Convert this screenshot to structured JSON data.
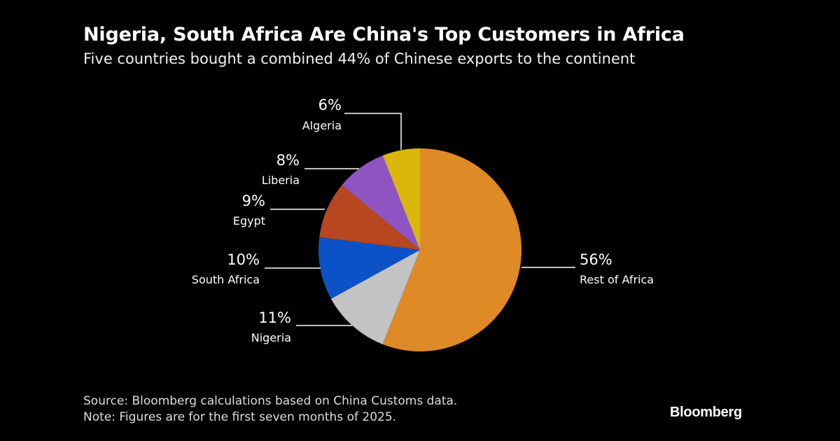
{
  "header": {
    "title": "Nigeria, South Africa Are China's Top Customers in Africa",
    "subtitle": "Five countries bought a combined 44% of Chinese exports to the continent"
  },
  "footer": {
    "source": "Source: Bloomberg calculations based on China Customs data.",
    "note": "Note: Figures are for the first seven months of 2025.",
    "brand": "Bloomberg"
  },
  "chart_data": {
    "type": "pie",
    "title": "Nigeria, South Africa Are China's Top Customers in Africa",
    "subtitle": "Five countries bought a combined 44% of Chinese exports to the continent",
    "unit": "%",
    "slices": [
      {
        "label": "Rest of Africa",
        "value": 56,
        "display": "56%",
        "color": "#DE8A26"
      },
      {
        "label": "Nigeria",
        "value": 11,
        "display": "11%",
        "color": "#C3C3C3"
      },
      {
        "label": "South Africa",
        "value": 10,
        "display": "10%",
        "color": "#0A52C6"
      },
      {
        "label": "Egypt",
        "value": 9,
        "display": "9%",
        "color": "#B8461F"
      },
      {
        "label": "Liberia",
        "value": 8,
        "display": "8%",
        "color": "#8E55C2"
      },
      {
        "label": "Algeria",
        "value": 6,
        "display": "6%",
        "color": "#DAB70A"
      }
    ],
    "start": "12 o'clock",
    "direction": "clockwise",
    "legend": "none"
  }
}
